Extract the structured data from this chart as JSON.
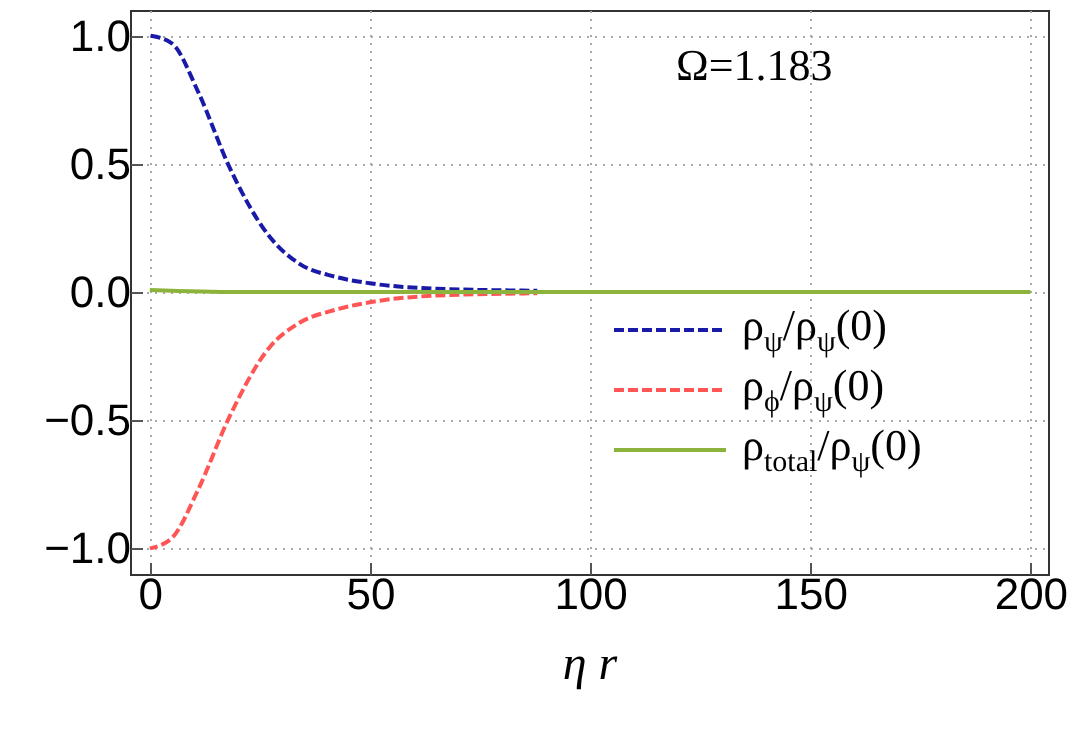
{
  "chart_data": {
    "type": "line",
    "xlabel": "η r",
    "annotations": [
      "Ω=1.183"
    ],
    "xlim": [
      -4.5,
      204
    ],
    "ylim": [
      -1.1,
      1.1
    ],
    "xticks": [
      0,
      50,
      100,
      150,
      200
    ],
    "yticks": [
      {
        "value": -1,
        "label": "−1.0"
      },
      {
        "value": -0.5,
        "label": "−0.5"
      },
      {
        "value": 0,
        "label": "0.0"
      },
      {
        "value": 0.5,
        "label": "0.5"
      },
      {
        "value": 1,
        "label": "1.0"
      }
    ],
    "grid": true,
    "legend": "bottom right",
    "marker": "none",
    "series": [
      {
        "name": "ρ$_{ψ}$/ρ$_{ψ}$(0)",
        "color": "#1a1aa8",
        "line_style": "dashed",
        "x": [
          0,
          5,
          11,
          18,
          27,
          34,
          42,
          50,
          65,
          88
        ],
        "values": [
          1.0,
          0.97,
          0.78,
          0.49,
          0.22,
          0.11,
          0.06,
          0.034,
          0.013,
          0.005
        ]
      },
      {
        "name": "ρ$_{ϕ}$/ρ$_{ψ}$(0)",
        "color": "#ff5555",
        "line_style": "dashed",
        "x": [
          0,
          5,
          11,
          18,
          27,
          34,
          42,
          50,
          65,
          88
        ],
        "values": [
          -1.0,
          -0.96,
          -0.77,
          -0.49,
          -0.22,
          -0.12,
          -0.07,
          -0.04,
          -0.014,
          -0.005
        ]
      },
      {
        "name": "ρ$_{total}$/ρ$_{ψ}$(0)",
        "color": "#8cb43c",
        "line_style": "solid",
        "x": [
          0,
          20,
          50,
          100,
          150,
          200
        ],
        "values": [
          0.008,
          0.0,
          0.0,
          0.0,
          0.0,
          0.0
        ]
      }
    ]
  }
}
